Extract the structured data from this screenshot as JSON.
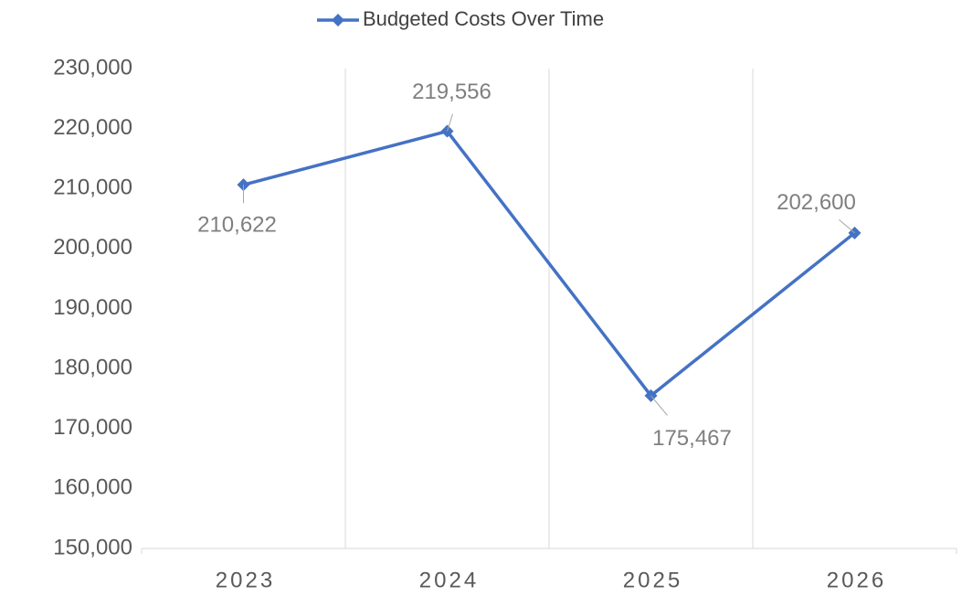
{
  "chart_data": {
    "type": "line",
    "categories": [
      "2023",
      "2024",
      "2025",
      "2026"
    ],
    "series": [
      {
        "name": "Budgeted Costs Over Time",
        "color": "#4472c4",
        "values": [
          210622,
          219556,
          175467,
          202600
        ],
        "value_labels": [
          "210,622",
          "219,556",
          "175,467",
          "202,600"
        ]
      }
    ],
    "ylim": [
      150000,
      230000
    ],
    "yticks": [
      {
        "value": 150000,
        "label": "150,000"
      },
      {
        "value": 160000,
        "label": "160,000"
      },
      {
        "value": 170000,
        "label": "170,000"
      },
      {
        "value": 180000,
        "label": "180,000"
      },
      {
        "value": 190000,
        "label": "190,000"
      },
      {
        "value": 200000,
        "label": "200,000"
      },
      {
        "value": 210000,
        "label": "210,000"
      },
      {
        "value": 220000,
        "label": "220,000"
      },
      {
        "value": 230000,
        "label": "230,000"
      }
    ],
    "grid": true,
    "legend": "top"
  }
}
